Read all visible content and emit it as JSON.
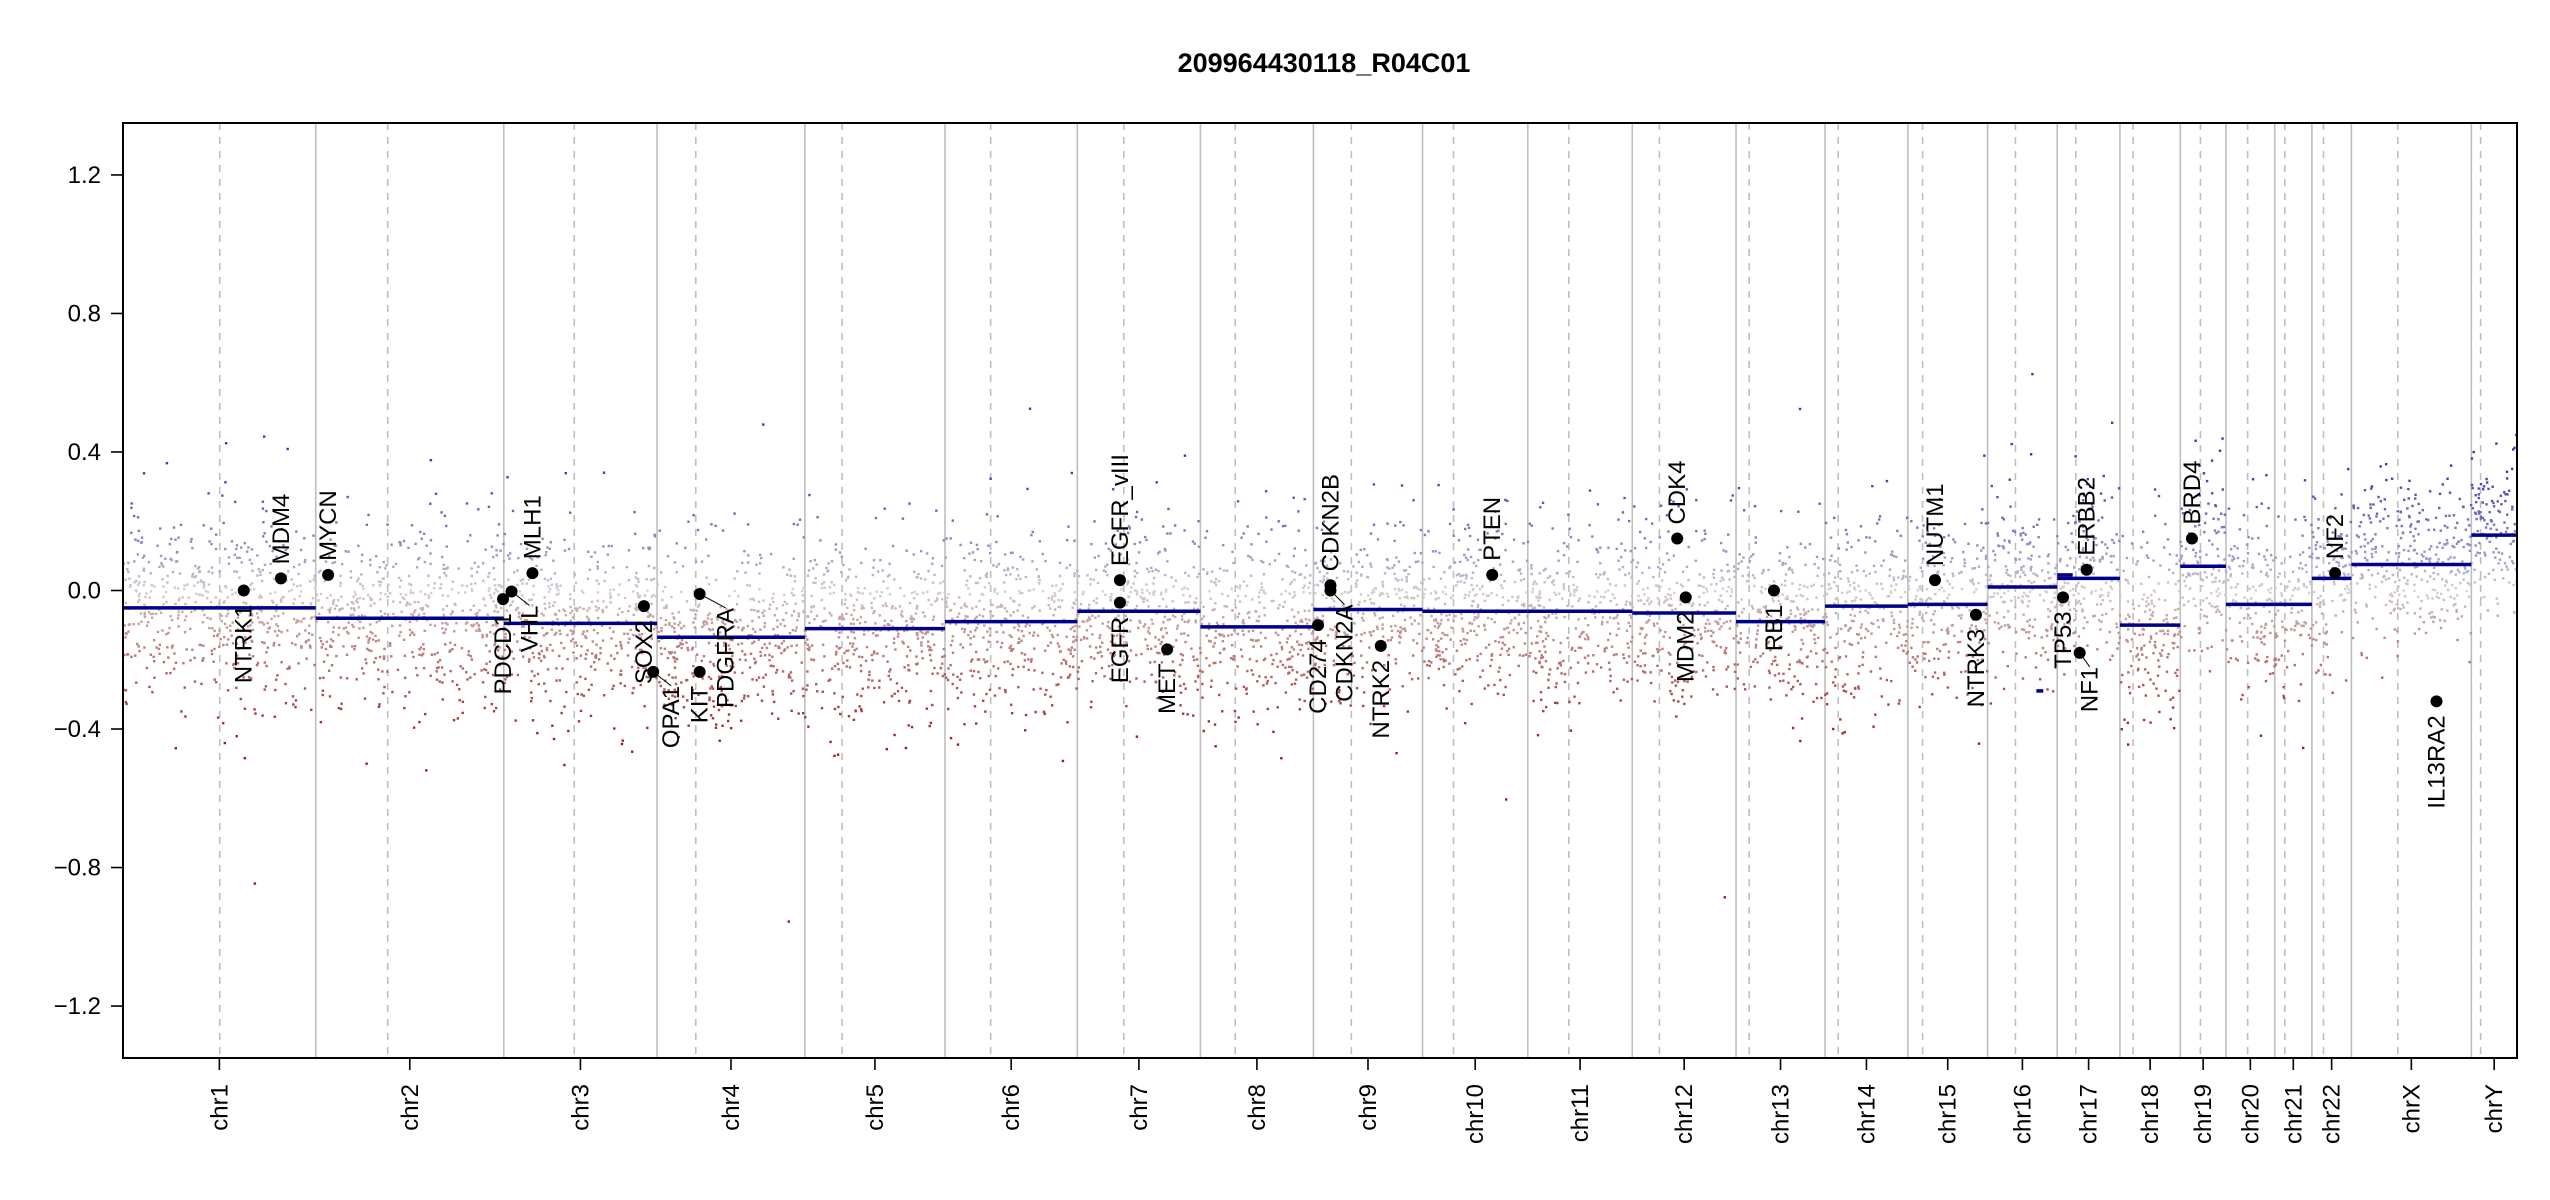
{
  "chart_data": {
    "type": "scatter",
    "title": "209964430118_R04C01",
    "xlabel": "",
    "ylabel": "",
    "ylim": [
      -1.35,
      1.35
    ],
    "y_ticks": [
      1.2,
      0.8,
      0.4,
      0.0,
      -0.4,
      -0.8,
      -1.2
    ],
    "y_tick_labels": [
      "1.2",
      "0.8",
      "0.4",
      "0.0",
      "−0.4",
      "−0.8",
      "−1.2"
    ],
    "grid": false,
    "chromosomes": [
      {
        "name": "chr1",
        "length": 249,
        "centromere": 125,
        "segment": -0.05
      },
      {
        "name": "chr2",
        "length": 243,
        "centromere": 93,
        "segment": -0.08
      },
      {
        "name": "chr3",
        "length": 198,
        "centromere": 91,
        "segment": -0.095
      },
      {
        "name": "chr4",
        "length": 191,
        "centromere": 50,
        "segment": -0.135
      },
      {
        "name": "chr5",
        "length": 181,
        "centromere": 48,
        "segment": -0.11
      },
      {
        "name": "chr6",
        "length": 171,
        "centromere": 59,
        "segment": -0.09
      },
      {
        "name": "chr7",
        "length": 159,
        "centromere": 60,
        "segment": -0.06
      },
      {
        "name": "chr8",
        "length": 146,
        "centromere": 45,
        "segment": -0.105
      },
      {
        "name": "chr9",
        "length": 141,
        "centromere": 49,
        "segment": -0.055
      },
      {
        "name": "chr10",
        "length": 136,
        "centromere": 40,
        "segment": -0.06
      },
      {
        "name": "chr11",
        "length": 135,
        "centromere": 53,
        "segment": -0.06
      },
      {
        "name": "chr12",
        "length": 134,
        "centromere": 35,
        "segment": -0.065
      },
      {
        "name": "chr13",
        "length": 115,
        "centromere": 17,
        "segment": -0.09
      },
      {
        "name": "chr14",
        "length": 107,
        "centromere": 17,
        "segment": -0.045
      },
      {
        "name": "chr15",
        "length": 103,
        "centromere": 19,
        "segment": -0.04
      },
      {
        "name": "chr16",
        "length": 90,
        "centromere": 36,
        "segment": 0.01
      },
      {
        "name": "chr17",
        "length": 81,
        "centromere": 24,
        "segment": 0.035
      },
      {
        "name": "chr18",
        "length": 78,
        "centromere": 17,
        "segment": -0.1
      },
      {
        "name": "chr19",
        "length": 59,
        "centromere": 26,
        "segment": 0.07
      },
      {
        "name": "chr20",
        "length": 63,
        "centromere": 28,
        "segment": -0.04
      },
      {
        "name": "chr21",
        "length": 48,
        "centromere": 13,
        "segment": -0.04
      },
      {
        "name": "chr22",
        "length": 51,
        "centromere": 15,
        "segment": 0.035
      },
      {
        "name": "chrX",
        "length": 155,
        "centromere": 60,
        "segment": 0.075
      },
      {
        "name": "chrY",
        "length": 59,
        "centromere": 12,
        "segment": 0.16
      }
    ],
    "extra_segments": [
      {
        "chr": "chr16",
        "start": 63,
        "end": 72,
        "value": -0.29
      },
      {
        "chr": "chr17",
        "start": 0,
        "end": 20,
        "value": 0.045
      }
    ],
    "genes": [
      {
        "name": "NTRK1",
        "chr": "chr1",
        "pos": 156,
        "value": 0.0,
        "label": "below"
      },
      {
        "name": "MDM4",
        "chr": "chr1",
        "pos": 204,
        "value": 0.035,
        "label": "above"
      },
      {
        "name": "MYCN",
        "chr": "chr2",
        "pos": 16,
        "value": 0.045,
        "label": "above"
      },
      {
        "name": "PDCD1",
        "chr": "chr2",
        "pos": 242,
        "value": -0.025,
        "label": "below"
      },
      {
        "name": "VHL",
        "chr": "chr3",
        "pos": 10,
        "value": -0.003,
        "label": "below"
      },
      {
        "name": "MLH1",
        "chr": "chr3",
        "pos": 37,
        "value": 0.05,
        "label": "above"
      },
      {
        "name": "SOX2",
        "chr": "chr3",
        "pos": 181,
        "value": -0.045,
        "label": "below"
      },
      {
        "name": "OPA1",
        "chr": "chr3",
        "pos": 193,
        "value": -0.235,
        "label": "below"
      },
      {
        "name": "KIT",
        "chr": "chr4",
        "pos": 55,
        "value": -0.235,
        "label": "below"
      },
      {
        "name": "PDGFRA",
        "chr": "chr4",
        "pos": 55,
        "value": -0.01,
        "label": "below"
      },
      {
        "name": "EGFR_vIII",
        "chr": "chr7",
        "pos": 55,
        "value": 0.03,
        "label": "above"
      },
      {
        "name": "EGFR",
        "chr": "chr7",
        "pos": 55,
        "value": -0.035,
        "label": "below"
      },
      {
        "name": "MET",
        "chr": "chr7",
        "pos": 116,
        "value": -0.17,
        "label": "below"
      },
      {
        "name": "CD274",
        "chr": "chr9",
        "pos": 6,
        "value": -0.1,
        "label": "below"
      },
      {
        "name": "CDKN2A",
        "chr": "chr9",
        "pos": 22,
        "value": 0.0,
        "label": "below"
      },
      {
        "name": "CDKN2B",
        "chr": "chr9",
        "pos": 22,
        "value": 0.015,
        "label": "above"
      },
      {
        "name": "NTRK2",
        "chr": "chr9",
        "pos": 87,
        "value": -0.16,
        "label": "below"
      },
      {
        "name": "PTEN",
        "chr": "chr10",
        "pos": 90,
        "value": 0.045,
        "label": "above"
      },
      {
        "name": "CDK4",
        "chr": "chr12",
        "pos": 58,
        "value": 0.15,
        "label": "above"
      },
      {
        "name": "MDM2",
        "chr": "chr12",
        "pos": 69,
        "value": -0.02,
        "label": "below"
      },
      {
        "name": "RB1",
        "chr": "chr13",
        "pos": 49,
        "value": 0.0,
        "label": "below"
      },
      {
        "name": "NUTM1",
        "chr": "chr15",
        "pos": 35,
        "value": 0.03,
        "label": "above"
      },
      {
        "name": "NTRK3",
        "chr": "chr15",
        "pos": 88,
        "value": -0.07,
        "label": "below"
      },
      {
        "name": "TP53",
        "chr": "chr17",
        "pos": 7.5,
        "value": -0.02,
        "label": "below"
      },
      {
        "name": "NF1",
        "chr": "chr17",
        "pos": 29,
        "value": -0.18,
        "label": "below"
      },
      {
        "name": "ERBB2",
        "chr": "chr17",
        "pos": 38,
        "value": 0.06,
        "label": "above"
      },
      {
        "name": "BRD4",
        "chr": "chr19",
        "pos": 15,
        "value": 0.15,
        "label": "above"
      },
      {
        "name": "NF2",
        "chr": "chr22",
        "pos": 30,
        "value": 0.05,
        "label": "above"
      },
      {
        "name": "IL13RA2",
        "chr": "chrX",
        "pos": 110,
        "value": -0.32,
        "label": "below"
      }
    ],
    "colors": {
      "segment": "#00008b",
      "gain": "#3a3ab0",
      "neutral": "#d3d3d3",
      "loss": "#a01818",
      "boundary": "#bebebe",
      "gene_point": "#000000"
    }
  }
}
